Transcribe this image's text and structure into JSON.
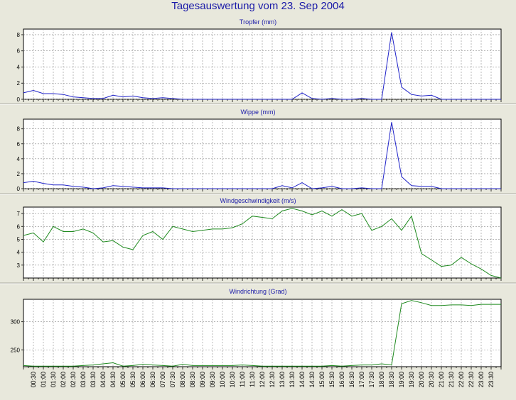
{
  "title": "Tagesauswertung vom 23. Sep 2004",
  "colors": {
    "background": "#e8e8dc",
    "plot_area": "#ffffff",
    "grid": "#8a8a8a",
    "title_text": "#1a1aa8",
    "blue_series": "#1f22c8",
    "green_series": "#1f8a1f"
  },
  "time_labels": [
    "00:30",
    "01:00",
    "01:30",
    "02:00",
    "02:30",
    "03:00",
    "03:30",
    "04:00",
    "04:30",
    "05:00",
    "05:30",
    "06:00",
    "06:30",
    "07:00",
    "07:30",
    "08:00",
    "08:30",
    "09:00",
    "09:30",
    "10:00",
    "10:30",
    "11:00",
    "11:30",
    "12:00",
    "12:30",
    "13:00",
    "13:30",
    "14:00",
    "14:30",
    "15:00",
    "15:30",
    "16:00",
    "16:30",
    "17:00",
    "17:30",
    "18:00",
    "18:30",
    "19:00",
    "19:30",
    "20:00",
    "20:30",
    "21:00",
    "21:30",
    "22:00",
    "22:30",
    "23:00",
    "23:30"
  ],
  "chart_data": [
    {
      "type": "line",
      "title": "Tropfer (mm)",
      "ylim": [
        0,
        8.7
      ],
      "yticks": [
        0,
        2,
        4,
        6,
        8
      ],
      "grid": true,
      "x": [
        "00:00",
        "00:30",
        "01:00",
        "01:30",
        "02:00",
        "02:30",
        "03:00",
        "03:30",
        "04:00",
        "04:30",
        "05:00",
        "05:30",
        "06:00",
        "06:30",
        "07:00",
        "07:30",
        "08:00",
        "08:30",
        "09:00",
        "09:30",
        "10:00",
        "10:30",
        "11:00",
        "11:30",
        "12:00",
        "12:30",
        "13:00",
        "13:30",
        "14:00",
        "14:30",
        "15:00",
        "15:30",
        "16:00",
        "16:30",
        "17:00",
        "17:30",
        "18:00",
        "18:30",
        "19:00",
        "19:30",
        "20:00",
        "20:30",
        "21:00",
        "21:30",
        "22:00",
        "22:30",
        "23:00",
        "23:30",
        "24:00"
      ],
      "series": [
        {
          "values": [
            0.8,
            1.1,
            0.7,
            0.7,
            0.6,
            0.3,
            0.2,
            0.1,
            0.1,
            0.5,
            0.3,
            0.4,
            0.2,
            0.1,
            0.2,
            0.1,
            0,
            0,
            0,
            0,
            0,
            0,
            0,
            0,
            0,
            0,
            0,
            0,
            0.8,
            0.1,
            0,
            0.1,
            0,
            0,
            0.1,
            0,
            0,
            8.3,
            1.5,
            0.6,
            0.4,
            0.5,
            0,
            0,
            0,
            0,
            0,
            0,
            0
          ],
          "color": "#1f22c8"
        }
      ]
    },
    {
      "type": "line",
      "title": "Wippe (mm)",
      "ylim": [
        0,
        9.3
      ],
      "yticks": [
        0,
        2,
        4,
        6,
        8
      ],
      "grid": true,
      "x": [
        "00:00",
        "00:30",
        "01:00",
        "01:30",
        "02:00",
        "02:30",
        "03:00",
        "03:30",
        "04:00",
        "04:30",
        "05:00",
        "05:30",
        "06:00",
        "06:30",
        "07:00",
        "07:30",
        "08:00",
        "08:30",
        "09:00",
        "09:30",
        "10:00",
        "10:30",
        "11:00",
        "11:30",
        "12:00",
        "12:30",
        "13:00",
        "13:30",
        "14:00",
        "14:30",
        "15:00",
        "15:30",
        "16:00",
        "16:30",
        "17:00",
        "17:30",
        "18:00",
        "18:30",
        "19:00",
        "19:30",
        "20:00",
        "20:30",
        "21:00",
        "21:30",
        "22:00",
        "22:30",
        "23:00",
        "23:30",
        "24:00"
      ],
      "series": [
        {
          "values": [
            0.8,
            1.0,
            0.7,
            0.5,
            0.5,
            0.3,
            0.2,
            0,
            0.1,
            0.4,
            0.3,
            0.2,
            0.1,
            0.1,
            0.1,
            0,
            0,
            0,
            0,
            0,
            0,
            0,
            0,
            0,
            0,
            0,
            0.4,
            0.1,
            0.8,
            0,
            0.1,
            0.3,
            0,
            0,
            0.1,
            0,
            0,
            8.9,
            1.6,
            0.4,
            0.3,
            0.3,
            0,
            0,
            0,
            0,
            0,
            0,
            0
          ],
          "color": "#1f22c8"
        }
      ]
    },
    {
      "type": "line",
      "title": "Windgeschwindigkeit (m/s)",
      "ylim": [
        2,
        7.5
      ],
      "yticks": [
        3,
        4,
        5,
        6,
        7
      ],
      "grid": true,
      "x": [
        "00:00",
        "00:30",
        "01:00",
        "01:30",
        "02:00",
        "02:30",
        "03:00",
        "03:30",
        "04:00",
        "04:30",
        "05:00",
        "05:30",
        "06:00",
        "06:30",
        "07:00",
        "07:30",
        "08:00",
        "08:30",
        "09:00",
        "09:30",
        "10:00",
        "10:30",
        "11:00",
        "11:30",
        "12:00",
        "12:30",
        "13:00",
        "13:30",
        "14:00",
        "14:30",
        "15:00",
        "15:30",
        "16:00",
        "16:30",
        "17:00",
        "17:30",
        "18:00",
        "18:30",
        "19:00",
        "19:30",
        "20:00",
        "20:30",
        "21:00",
        "21:30",
        "22:00",
        "22:30",
        "23:00",
        "23:30",
        "24:00"
      ],
      "series": [
        {
          "values": [
            5.3,
            5.5,
            4.8,
            6.0,
            5.6,
            5.6,
            5.8,
            5.5,
            4.8,
            4.9,
            4.4,
            4.2,
            5.3,
            5.6,
            5.0,
            6.0,
            5.8,
            5.6,
            5.7,
            5.8,
            5.8,
            5.9,
            6.2,
            6.8,
            6.7,
            6.6,
            7.2,
            7.4,
            7.2,
            6.9,
            7.2,
            6.8,
            7.3,
            6.8,
            7.0,
            5.7,
            6.0,
            6.6,
            5.7,
            6.8,
            3.9,
            3.4,
            2.9,
            3.0,
            3.6,
            3.1,
            2.7,
            2.2,
            2.0
          ],
          "color": "#1f8a1f"
        }
      ]
    },
    {
      "type": "line",
      "title": "Windrichtung (Grad)",
      "ylim": [
        220,
        340
      ],
      "yticks": [
        250,
        300
      ],
      "grid": true,
      "x": [
        "00:00",
        "00:30",
        "01:00",
        "01:30",
        "02:00",
        "02:30",
        "03:00",
        "03:30",
        "04:00",
        "04:30",
        "05:00",
        "05:30",
        "06:00",
        "06:30",
        "07:00",
        "07:30",
        "08:00",
        "08:30",
        "09:00",
        "09:30",
        "10:00",
        "10:30",
        "11:00",
        "11:30",
        "12:00",
        "12:30",
        "13:00",
        "13:30",
        "14:00",
        "14:30",
        "15:00",
        "15:30",
        "16:00",
        "16:30",
        "17:00",
        "17:30",
        "18:00",
        "18:30",
        "19:00",
        "19:30",
        "20:00",
        "20:30",
        "21:00",
        "21:30",
        "22:00",
        "22:30",
        "23:00",
        "23:30",
        "24:00"
      ],
      "series": [
        {
          "values": [
            222,
            221,
            221,
            221,
            221,
            221,
            222,
            223,
            225,
            227,
            221,
            222,
            224,
            223,
            222,
            221,
            224,
            222,
            222,
            222,
            222,
            222,
            223,
            222,
            221,
            221,
            221,
            221,
            221,
            221,
            221,
            222,
            221,
            222,
            223,
            223,
            225,
            223,
            332,
            338,
            334,
            329,
            329,
            330,
            330,
            329,
            331,
            331,
            331
          ],
          "color": "#1f8a1f"
        }
      ]
    }
  ]
}
